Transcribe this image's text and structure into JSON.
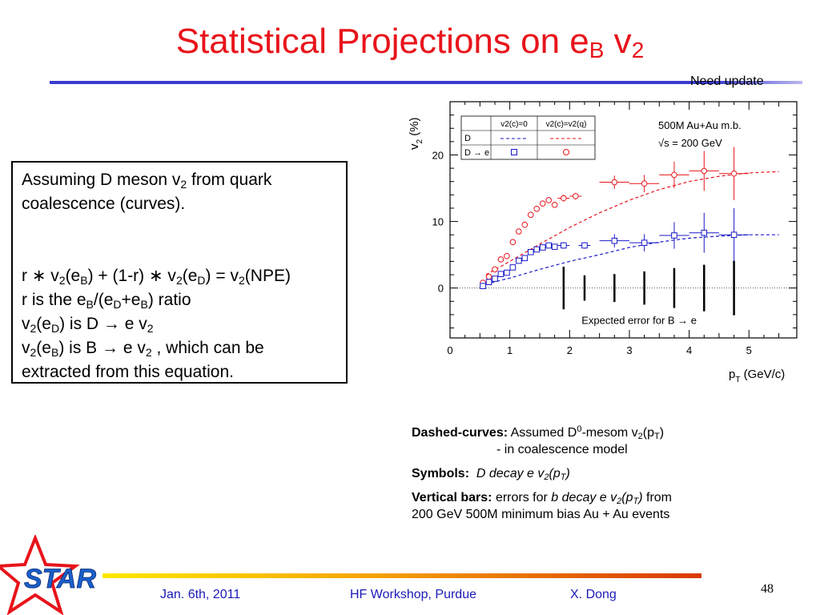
{
  "slide": {
    "title_main": "Statistical Projections on e",
    "title_sub": "B",
    "title_tail": " v",
    "title_sub2": "2",
    "need_update": "Need update",
    "page_number": "48"
  },
  "textbox": {
    "l1a": "Assuming D meson v",
    "l1s": "2",
    "l1b": " from quark",
    "l2": "coalescence (curves).",
    "l3a": "r ∗ v",
    "l3s1": "2",
    "l3b": "(e",
    "l3s2": "B",
    "l3c": ") + (1-r) ∗ v",
    "l3s3": "2",
    "l3d": "(e",
    "l3s4": "D",
    "l3e": ") = v",
    "l3s5": "2",
    "l3f": "(NPE)",
    "l4a": "r is the e",
    "l4s1": "B",
    "l4b": "/(e",
    "l4s2": "D",
    "l4c": "+e",
    "l4s3": "B",
    "l4d": ") ratio",
    "l5a": "v",
    "l5s1": "2",
    "l5b": "(e",
    "l5s2": "D",
    "l5c": ") is D → e v",
    "l5s3": "2",
    "l6a": "v",
    "l6s1": "2",
    "l6b": "(e",
    "l6s2": "B",
    "l6c": ") is B → e v",
    "l6s3": "2",
    "l6d": " , which can be",
    "l7": "extracted from this equation."
  },
  "notes": {
    "dashed_label": "Dashed-curves:",
    "dashed_text_a": " Assumed D",
    "dashed_sup": "0",
    "dashed_text_b": "-mesom v",
    "dashed_sub": "2",
    "dashed_text_c": "(p",
    "dashed_sub2": "T",
    "dashed_text_d": ")",
    "dashed_line2": "- in coalescence model",
    "symbols_label": "Symbols:",
    "symbols_text_a": "D decay e v",
    "symbols_sub": "2",
    "symbols_text_b": "(p",
    "symbols_sub2": "T",
    "symbols_text_c": ")",
    "vbars_label": "Vertical bars:",
    "vbars_text_a": " errors for ",
    "vbars_italic_a": "b decay e v",
    "vbars_sub": "2",
    "vbars_italic_b": "(p",
    "vbars_sub2": "T",
    "vbars_italic_c": ")",
    "vbars_text_b": " from",
    "vbars_line2": "200 GeV 500M minimum bias Au + Au events"
  },
  "footer": {
    "date": "Jan. 6th, 2011",
    "event": "HF Workshop, Purdue",
    "author": "X. Dong",
    "logo_text": "STAR"
  },
  "colors": {
    "title": "#e8141b",
    "footer_text": "#1a1ab8",
    "red_series": "#e8141b",
    "blue_series": "#1a1ac8"
  },
  "chart_data": {
    "type": "scatter",
    "xlabel": "p",
    "xlabel_sub": "T",
    "xlabel_unit": " (GeV/c)",
    "ylabel": "v",
    "ylabel_sub": "2",
    "ylabel_unit": " (%)",
    "xlim": [
      0,
      5.8
    ],
    "ylim": [
      -7.5,
      28
    ],
    "xticks": [
      "0",
      "1",
      "2",
      "3",
      "4",
      "5"
    ],
    "xtick_values": [
      0,
      1,
      2,
      3,
      4,
      5
    ],
    "yticks": [
      "0",
      "10",
      "20"
    ],
    "ytick_values": [
      0,
      10,
      20
    ],
    "annotation_line1": "500M Au+Au m.b.",
    "annotation_line2": "√s = 200 GeV",
    "expected_error_label": "Expected error for B → e",
    "legend": {
      "col1": "v2(c)=0",
      "col2": "v2(c)=v2(q)",
      "row1": "D",
      "row2": "D → e"
    },
    "series": [
      {
        "name": "D → e, v2(c)=v2(q)",
        "marker": "circle",
        "color": "#e8141b",
        "points": [
          {
            "x": 0.55,
            "y": 0.8,
            "ex": 0.05,
            "ey": 0.4
          },
          {
            "x": 0.65,
            "y": 1.7,
            "ex": 0.05,
            "ey": 0.4
          },
          {
            "x": 0.75,
            "y": 2.8,
            "ex": 0.05,
            "ey": 0.4
          },
          {
            "x": 0.85,
            "y": 4.3,
            "ex": 0.05,
            "ey": 0.4
          },
          {
            "x": 0.95,
            "y": 4.8,
            "ex": 0.05,
            "ey": 0.4
          },
          {
            "x": 1.05,
            "y": 6.9,
            "ex": 0.05,
            "ey": 0.4
          },
          {
            "x": 1.15,
            "y": 8.5,
            "ex": 0.05,
            "ey": 0.4
          },
          {
            "x": 1.25,
            "y": 9.5,
            "ex": 0.05,
            "ey": 0.4
          },
          {
            "x": 1.35,
            "y": 11.0,
            "ex": 0.05,
            "ey": 0.4
          },
          {
            "x": 1.45,
            "y": 11.9,
            "ex": 0.05,
            "ey": 0.4
          },
          {
            "x": 1.55,
            "y": 12.7,
            "ex": 0.05,
            "ey": 0.4
          },
          {
            "x": 1.65,
            "y": 13.2,
            "ex": 0.05,
            "ey": 0.4
          },
          {
            "x": 1.75,
            "y": 12.5,
            "ex": 0.05,
            "ey": 0.4
          },
          {
            "x": 1.9,
            "y": 13.5,
            "ex": 0.1,
            "ey": 0.5
          },
          {
            "x": 2.1,
            "y": 13.8,
            "ex": 0.1,
            "ey": 0.5
          },
          {
            "x": 2.75,
            "y": 15.9,
            "ex": 0.25,
            "ey": 1.0
          },
          {
            "x": 3.25,
            "y": 15.7,
            "ex": 0.25,
            "ey": 1.3
          },
          {
            "x": 3.75,
            "y": 17.0,
            "ex": 0.25,
            "ey": 2.0
          },
          {
            "x": 4.25,
            "y": 17.6,
            "ex": 0.25,
            "ey": 3.0
          },
          {
            "x": 4.75,
            "y": 17.2,
            "ex": 0.25,
            "ey": 4.0
          }
        ]
      },
      {
        "name": "D → e, v2(c)=0",
        "marker": "square",
        "color": "#1a1ac8",
        "points": [
          {
            "x": 0.55,
            "y": 0.3,
            "ex": 0.05,
            "ey": 0.4
          },
          {
            "x": 0.65,
            "y": 0.9,
            "ex": 0.05,
            "ey": 0.4
          },
          {
            "x": 0.75,
            "y": 1.4,
            "ex": 0.05,
            "ey": 0.4
          },
          {
            "x": 0.85,
            "y": 2.1,
            "ex": 0.05,
            "ey": 0.4
          },
          {
            "x": 0.95,
            "y": 2.3,
            "ex": 0.05,
            "ey": 0.4
          },
          {
            "x": 1.05,
            "y": 3.1,
            "ex": 0.05,
            "ey": 0.4
          },
          {
            "x": 1.15,
            "y": 4.1,
            "ex": 0.05,
            "ey": 0.4
          },
          {
            "x": 1.25,
            "y": 4.5,
            "ex": 0.05,
            "ey": 0.4
          },
          {
            "x": 1.35,
            "y": 5.4,
            "ex": 0.05,
            "ey": 0.4
          },
          {
            "x": 1.45,
            "y": 5.8,
            "ex": 0.05,
            "ey": 0.4
          },
          {
            "x": 1.55,
            "y": 6.1,
            "ex": 0.05,
            "ey": 0.4
          },
          {
            "x": 1.65,
            "y": 6.4,
            "ex": 0.05,
            "ey": 0.4
          },
          {
            "x": 1.75,
            "y": 6.2,
            "ex": 0.05,
            "ey": 0.4
          },
          {
            "x": 1.9,
            "y": 6.4,
            "ex": 0.1,
            "ey": 0.5
          },
          {
            "x": 2.25,
            "y": 6.4,
            "ex": 0.1,
            "ey": 0.5
          },
          {
            "x": 2.75,
            "y": 7.1,
            "ex": 0.25,
            "ey": 1.0
          },
          {
            "x": 3.25,
            "y": 6.8,
            "ex": 0.25,
            "ey": 1.3
          },
          {
            "x": 3.75,
            "y": 7.9,
            "ex": 0.25,
            "ey": 2.0
          },
          {
            "x": 4.25,
            "y": 8.3,
            "ex": 0.25,
            "ey": 3.0
          },
          {
            "x": 4.75,
            "y": 8.0,
            "ex": 0.25,
            "ey": 4.0
          }
        ]
      }
    ],
    "curves": [
      {
        "name": "curve v2(c)=v2(q)",
        "color": "#e8141b",
        "points": [
          [
            0.6,
            2.0
          ],
          [
            1.0,
            4.0
          ],
          [
            1.5,
            6.6
          ],
          [
            2.0,
            9.1
          ],
          [
            2.5,
            11.3
          ],
          [
            3.0,
            13.2
          ],
          [
            3.5,
            14.8
          ],
          [
            4.0,
            16.0
          ],
          [
            4.5,
            16.8
          ],
          [
            5.0,
            17.3
          ],
          [
            5.5,
            17.5
          ]
        ]
      },
      {
        "name": "curve v2(c)=0",
        "color": "#1a1ac8",
        "points": [
          [
            0.6,
            0.6
          ],
          [
            1.0,
            1.5
          ],
          [
            1.5,
            2.8
          ],
          [
            2.0,
            4.0
          ],
          [
            2.5,
            5.0
          ],
          [
            3.0,
            6.1
          ],
          [
            3.5,
            6.9
          ],
          [
            4.0,
            7.5
          ],
          [
            4.5,
            7.8
          ],
          [
            5.0,
            8.0
          ],
          [
            5.5,
            8.0
          ]
        ]
      }
    ],
    "expected_error_bars": [
      {
        "x": 1.9,
        "half": 3.2
      },
      {
        "x": 2.25,
        "half": 1.9
      },
      {
        "x": 2.75,
        "half": 2.1
      },
      {
        "x": 3.25,
        "half": 2.5
      },
      {
        "x": 3.75,
        "half": 3.0
      },
      {
        "x": 4.25,
        "half": 3.5
      },
      {
        "x": 4.75,
        "half": 4.1
      }
    ],
    "expected_error_center": 0
  }
}
